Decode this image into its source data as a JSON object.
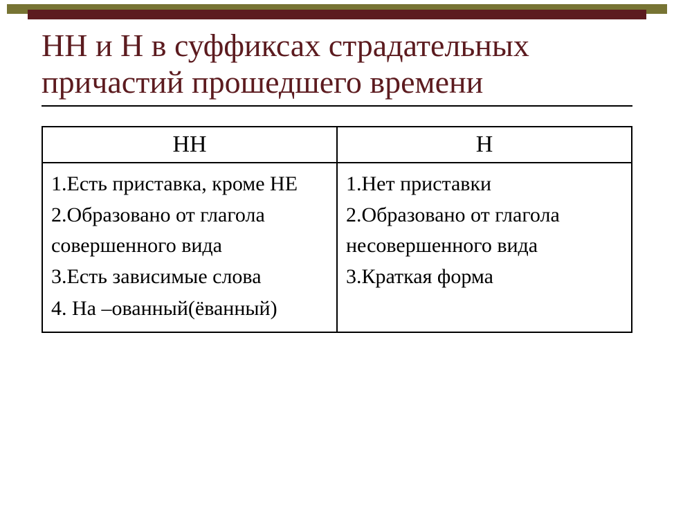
{
  "colors": {
    "olive_bar": "#777434",
    "maroon_bar": "#5c1b1f",
    "title_color": "#5c1b1f",
    "text_color": "#000000",
    "border_color": "#000000",
    "background": "#ffffff"
  },
  "typography": {
    "font_family": "Times New Roman",
    "title_fontsize": 46,
    "header_fontsize": 34,
    "cell_fontsize": 30
  },
  "title": "НН и Н в суффиксах страдательных причастий прошедшего времени",
  "table": {
    "headers": {
      "col1": "НН",
      "col2": "Н"
    },
    "col1_rules": {
      "r1": "1.Есть приставка, кроме НЕ",
      "r2": "2.Образовано от глагола совершенного вида",
      "r3": "3.Есть зависимые слова",
      "r4": "4. На –ованный(ёванный)"
    },
    "col2_rules": {
      "r1": "1.Нет приставки",
      "r2": "2.Образовано от глагола несовершенного вида",
      "r3": "3.Краткая форма"
    }
  }
}
